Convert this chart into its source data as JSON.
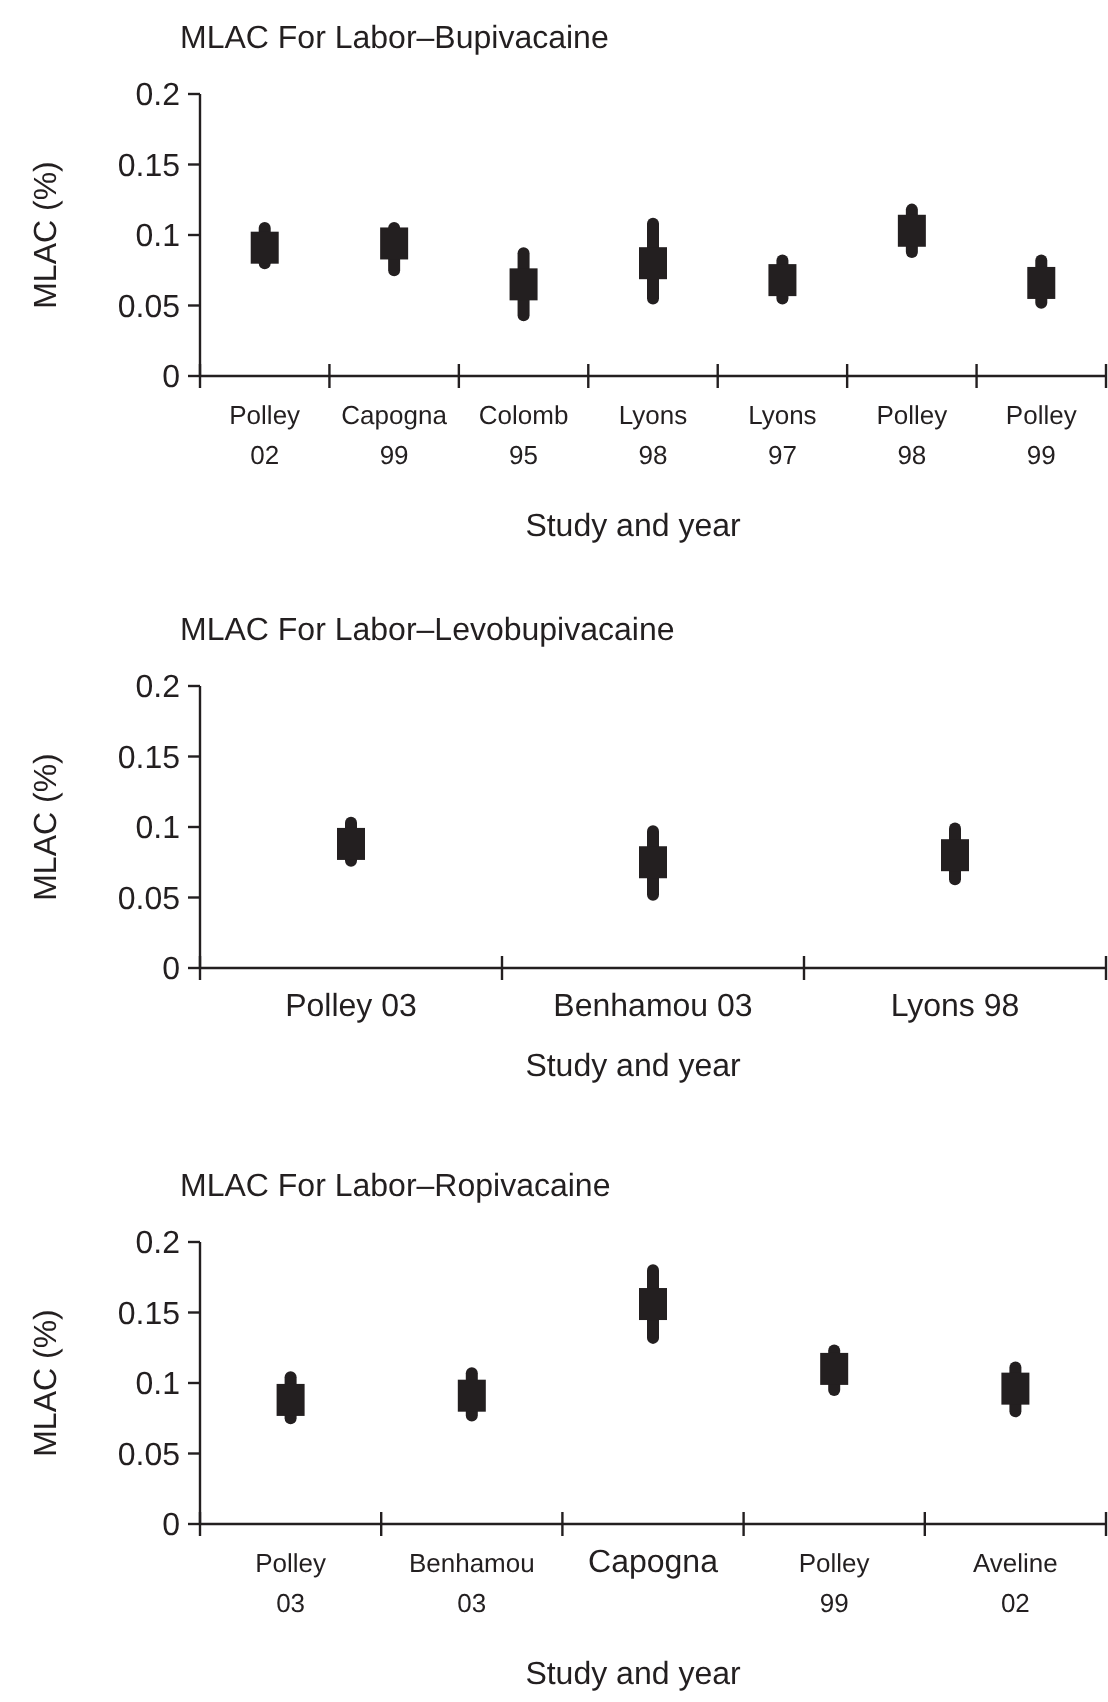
{
  "chart_data": [
    {
      "type": "scatter",
      "title": "MLAC For Labor–Bupivacaine",
      "xlabel": "Study and year",
      "ylabel": "MLAC (%)",
      "categories": [
        "Polley\n02",
        "Capogna\n99",
        "Colomb\n95",
        "Lyons\n98",
        "Lyons\n97",
        "Polley\n98",
        "Polley\n99"
      ],
      "values": [
        0.091,
        0.094,
        0.065,
        0.08,
        0.068,
        0.103,
        0.066
      ],
      "errors": [
        [
          0.08,
          0.105
        ],
        [
          0.075,
          0.105
        ],
        [
          0.043,
          0.087
        ],
        [
          0.055,
          0.108
        ],
        [
          0.055,
          0.082
        ],
        [
          0.088,
          0.118
        ],
        [
          0.052,
          0.082
        ]
      ],
      "color": "#231f20",
      "marker": "square",
      "ylim": [
        0,
        0.2
      ],
      "yticks": [
        0,
        0.05,
        0.1,
        0.15,
        0.2
      ]
    },
    {
      "type": "scatter",
      "title": "MLAC For Labor–Levobupivacaine",
      "xlabel": "Study and year",
      "ylabel": "MLAC (%)",
      "categories": [
        "Polley 03",
        "Benhamou 03",
        "Lyons 98"
      ],
      "values": [
        0.088,
        0.075,
        0.08
      ],
      "errors": [
        [
          0.076,
          0.103
        ],
        [
          0.052,
          0.097
        ],
        [
          0.063,
          0.099
        ]
      ],
      "color": "#231f20",
      "marker": "square",
      "ylim": [
        0,
        0.2
      ],
      "yticks": [
        0,
        0.05,
        0.1,
        0.15,
        0.2
      ]
    },
    {
      "type": "scatter",
      "title": "MLAC For Labor–Ropivacaine",
      "xlabel": "Study and year",
      "ylabel": "MLAC (%)",
      "categories": [
        "Polley\n03",
        "Benhamou\n03",
        "Capogna",
        "Polley\n99",
        "Aveline\n02"
      ],
      "values": [
        0.088,
        0.091,
        0.156,
        0.11,
        0.096
      ],
      "errors": [
        [
          0.075,
          0.104
        ],
        [
          0.077,
          0.107
        ],
        [
          0.132,
          0.18
        ],
        [
          0.095,
          0.123
        ],
        [
          0.08,
          0.111
        ]
      ],
      "color": "#231f20",
      "marker": "square",
      "ylim": [
        0,
        0.2
      ],
      "yticks": [
        0,
        0.05,
        0.1,
        0.15,
        0.2
      ]
    }
  ]
}
